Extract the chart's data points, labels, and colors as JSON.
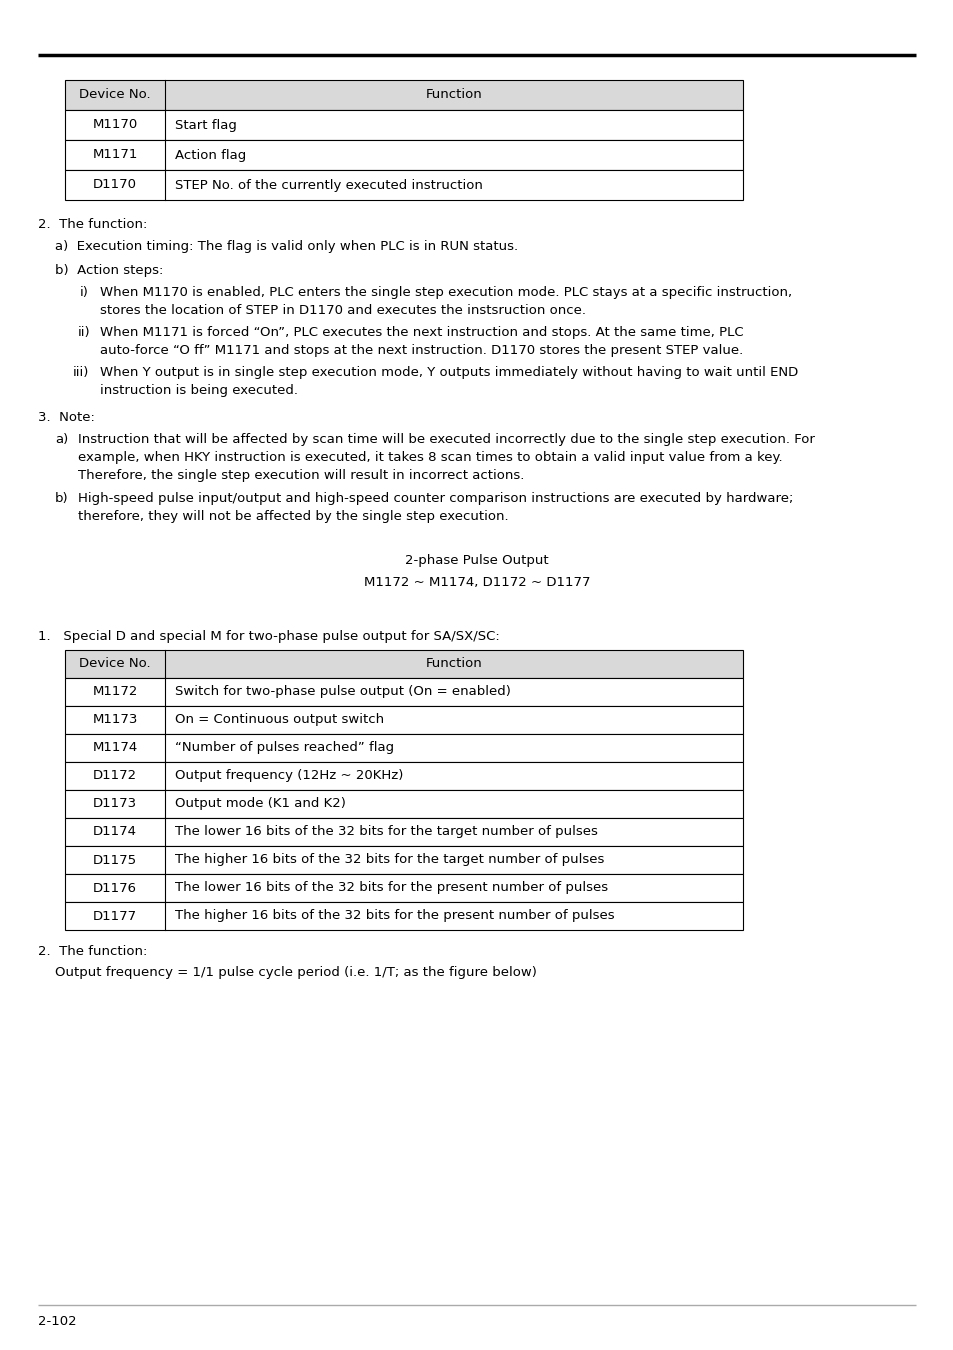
{
  "page_number": "2-102",
  "table1": {
    "rows": [
      [
        "M1170",
        "Start flag"
      ],
      [
        "M1171",
        "Action flag"
      ],
      [
        "D1170",
        "STEP No. of the currently executed instruction"
      ]
    ]
  },
  "section2_title": "2.  The function:",
  "section2a_text": "a)  Execution timing: The flag is valid only when PLC is in RUN status.",
  "section2b_label": "b)  Action steps:",
  "sub_items": [
    {
      "label": "i)",
      "lines": [
        "When M1170 is enabled, PLC enters the single step execution mode. PLC stays at a specific instruction,",
        "stores the location of STEP in D1170 and executes the instsruction once."
      ]
    },
    {
      "label": "ii)",
      "lines": [
        "When M1171 is forced “On”, PLC executes the next instruction and stops. At the same time, PLC",
        "auto-force “O ff” M1171 and stops at the next instruction. D1170 stores the present STEP value."
      ]
    },
    {
      "label": "iii)",
      "lines": [
        "When Y output is in single step execution mode, Y outputs immediately without having to wait until END",
        "instruction is being executed."
      ]
    }
  ],
  "section3_title": "3.  Note:",
  "section3_items": [
    {
      "label": "a)",
      "lines": [
        "Instruction that will be affected by scan time will be executed incorrectly due to the single step execution. For",
        "example, when HKY instruction is executed, it takes 8 scan times to obtain a valid input value from a key.",
        "Therefore, the single step execution will result in incorrect actions."
      ]
    },
    {
      "label": "b)",
      "lines": [
        "High-speed pulse input/output and high-speed counter comparison instructions are executed by hardware;",
        "therefore, they will not be affected by the single step execution."
      ]
    }
  ],
  "center_heading1": "2-phase Pulse Output",
  "center_heading2": "M1172 ~ M1174, D1172 ~ D1177",
  "section1b_title": "1.   Special D and special M for two-phase pulse output for SA/SX/SC:",
  "table2_rows": [
    [
      "M1172",
      "Switch for two-phase pulse output (On = enabled)"
    ],
    [
      "M1173",
      "On = Continuous output switch"
    ],
    [
      "M1174",
      "“Number of pulses reached” flag"
    ],
    [
      "D1172",
      "Output frequency (12Hz ~ 20KHz)"
    ],
    [
      "D1173",
      "Output mode (K1 and K2)"
    ],
    [
      "D1174",
      "The lower 16 bits of the 32 bits for the target number of pulses"
    ],
    [
      "D1175",
      "The higher 16 bits of the 32 bits for the target number of pulses"
    ],
    [
      "D1176",
      "The lower 16 bits of the 32 bits for the present number of pulses"
    ],
    [
      "D1177",
      "The higher 16 bits of the 32 bits for the present number of pulses"
    ]
  ],
  "section2b_title": "2.  The function:",
  "section2b_text": "Output frequency = 1/1 pulse cycle period (i.e. 1/T; as the figure below)",
  "header_bg": "#d9d9d9",
  "bg_color": "#ffffff",
  "text_color": "#000000",
  "border_color": "#000000"
}
